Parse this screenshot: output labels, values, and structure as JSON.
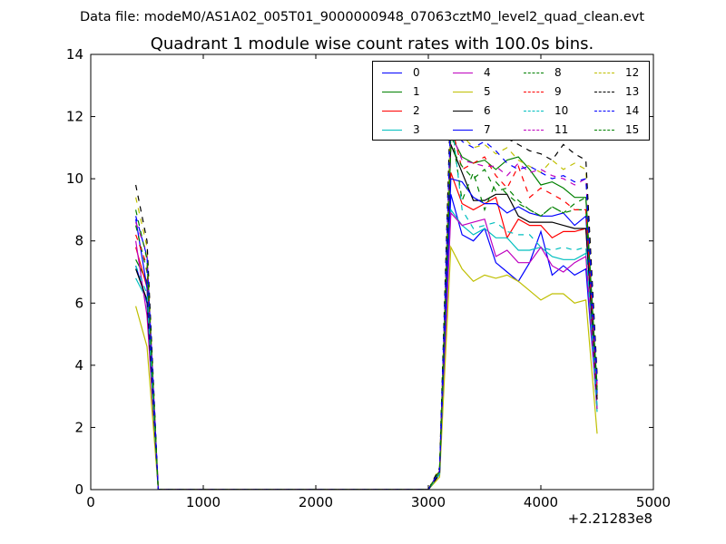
{
  "header": {
    "data_file": "Data file: modeM0/AS1A02_005T01_9000000948_07063cztM0_level2_quad_clean.evt"
  },
  "chart_data": {
    "type": "line",
    "title": "Quadrant 1 module wise count rates with 100.0s bins.",
    "xlabel": "",
    "ylabel": "",
    "x_offset_label": "+2.21283e8",
    "xlim": [
      0,
      5000
    ],
    "ylim": [
      0,
      14
    ],
    "x_ticks": [
      0,
      1000,
      2000,
      3000,
      4000,
      5000
    ],
    "y_ticks": [
      0,
      2,
      4,
      6,
      8,
      10,
      12,
      14
    ],
    "x_tick_labels": [
      "0",
      "1000",
      "2000",
      "3000",
      "4000",
      "5000"
    ],
    "y_tick_labels": [
      "0",
      "2",
      "4",
      "6",
      "8",
      "10",
      "12",
      "14"
    ],
    "grid": false,
    "legend_placement": "top-right",
    "x": [
      400,
      500,
      600,
      700,
      800,
      900,
      1000,
      1100,
      1200,
      1300,
      1400,
      1500,
      1600,
      1700,
      1800,
      1900,
      2000,
      2100,
      2200,
      2300,
      2400,
      2500,
      2600,
      2700,
      2800,
      2900,
      3000,
      3100,
      3200,
      3300,
      3400,
      3500,
      3600,
      3700,
      3800,
      3900,
      4000,
      4100,
      4200,
      4300,
      4400,
      4500
    ],
    "series": [
      {
        "name": "0",
        "color": "#0000ff",
        "dash": "solid",
        "values": [
          7.2,
          6.0,
          0,
          0,
          0,
          0,
          0,
          0,
          0,
          0,
          0,
          0,
          0,
          0,
          0,
          0,
          0,
          0,
          0,
          0,
          0,
          0,
          0,
          0,
          0,
          0,
          0,
          0.5,
          9.5,
          8.2,
          8.0,
          8.4,
          7.3,
          7.0,
          6.7,
          7.3,
          8.3,
          6.9,
          7.2,
          6.9,
          7.1,
          2.6
        ]
      },
      {
        "name": "1",
        "color": "#008000",
        "dash": "solid",
        "values": [
          7.4,
          6.7,
          0,
          0,
          0,
          0,
          0,
          0,
          0,
          0,
          0,
          0,
          0,
          0,
          0,
          0,
          0,
          0,
          0,
          0,
          0,
          0,
          0,
          0,
          0,
          0,
          0,
          0.6,
          11.4,
          10.7,
          10.5,
          10.6,
          10.3,
          10.6,
          10.7,
          10.3,
          9.8,
          9.9,
          9.7,
          9.4,
          9.4,
          3.2
        ]
      },
      {
        "name": "2",
        "color": "#ff0000",
        "dash": "solid",
        "values": [
          7.8,
          6.5,
          0,
          0,
          0,
          0,
          0,
          0,
          0,
          0,
          0,
          0,
          0,
          0,
          0,
          0,
          0,
          0,
          0,
          0,
          0,
          0,
          0,
          0,
          0,
          0,
          0,
          0.6,
          10.2,
          9.2,
          9.0,
          9.2,
          9.4,
          8.1,
          8.7,
          8.5,
          8.5,
          8.1,
          8.3,
          8.3,
          8.4,
          3.0
        ]
      },
      {
        "name": "3",
        "color": "#00bfbf",
        "dash": "solid",
        "values": [
          6.8,
          6.1,
          0,
          0,
          0,
          0,
          0,
          0,
          0,
          0,
          0,
          0,
          0,
          0,
          0,
          0,
          0,
          0,
          0,
          0,
          0,
          0,
          0,
          0,
          0,
          0,
          0,
          0.5,
          9.0,
          8.5,
          8.2,
          8.4,
          8.1,
          8.1,
          7.7,
          7.7,
          7.8,
          7.5,
          7.4,
          7.4,
          7.6,
          2.5
        ]
      },
      {
        "name": "4",
        "color": "#bf00bf",
        "dash": "solid",
        "values": [
          8.0,
          5.6,
          0,
          0,
          0,
          0,
          0,
          0,
          0,
          0,
          0,
          0,
          0,
          0,
          0,
          0,
          0,
          0,
          0,
          0,
          0,
          0,
          0,
          0,
          0,
          0,
          0,
          0.5,
          8.9,
          8.5,
          8.6,
          8.7,
          7.5,
          7.7,
          7.3,
          7.3,
          7.8,
          7.2,
          7.0,
          7.3,
          7.5,
          2.6
        ]
      },
      {
        "name": "5",
        "color": "#bfbf00",
        "dash": "solid",
        "values": [
          5.9,
          4.6,
          0,
          0,
          0,
          0,
          0,
          0,
          0,
          0,
          0,
          0,
          0,
          0,
          0,
          0,
          0,
          0,
          0,
          0,
          0,
          0,
          0,
          0,
          0,
          0,
          0,
          0.4,
          7.8,
          7.1,
          6.7,
          6.9,
          6.8,
          6.9,
          6.7,
          6.4,
          6.1,
          6.3,
          6.3,
          6.0,
          6.1,
          1.8
        ]
      },
      {
        "name": "6",
        "color": "#000000",
        "dash": "solid",
        "values": [
          7.1,
          6.1,
          0,
          0,
          0,
          0,
          0,
          0,
          0,
          0,
          0,
          0,
          0,
          0,
          0,
          0,
          0,
          0,
          0,
          0,
          0,
          0,
          0,
          0,
          0,
          0,
          0,
          0.5,
          11.1,
          10.2,
          9.3,
          9.3,
          9.5,
          9.5,
          8.8,
          8.6,
          8.6,
          8.6,
          8.5,
          8.4,
          8.4,
          2.9
        ]
      },
      {
        "name": "7",
        "color": "#0000ff",
        "dash": "solid",
        "values": [
          8.7,
          6.5,
          0,
          0,
          0,
          0,
          0,
          0,
          0,
          0,
          0,
          0,
          0,
          0,
          0,
          0,
          0,
          0,
          0,
          0,
          0,
          0,
          0,
          0,
          0,
          0,
          0,
          0.6,
          10.0,
          9.9,
          9.4,
          9.2,
          9.2,
          8.9,
          9.1,
          8.9,
          8.8,
          8.8,
          8.9,
          8.5,
          8.8,
          3.1
        ]
      },
      {
        "name": "8",
        "color": "#008000",
        "dash": "dashed",
        "values": [
          8.5,
          7.0,
          0,
          0,
          0,
          0,
          0,
          0,
          0,
          0,
          0,
          0,
          0,
          0,
          0,
          0,
          0,
          0,
          0,
          0,
          0,
          0,
          0,
          0,
          0,
          0,
          0,
          0.6,
          11.7,
          9.3,
          10.2,
          9.0,
          9.9,
          9.5,
          9.2,
          9.0,
          8.8,
          9.1,
          8.9,
          9.0,
          9.0,
          3.2
        ]
      },
      {
        "name": "9",
        "color": "#ff0000",
        "dash": "dashed",
        "values": [
          8.2,
          7.2,
          0,
          0,
          0,
          0,
          0,
          0,
          0,
          0,
          0,
          0,
          0,
          0,
          0,
          0,
          0,
          0,
          0,
          0,
          0,
          0,
          0,
          0,
          0,
          0,
          0,
          0.6,
          11.8,
          10.3,
          10.5,
          10.7,
          10.1,
          9.7,
          10.4,
          9.4,
          9.7,
          9.5,
          9.3,
          9.0,
          9.0,
          3.2
        ]
      },
      {
        "name": "10",
        "color": "#00bfbf",
        "dash": "dashed",
        "values": [
          7.2,
          6.3,
          0,
          0,
          0,
          0,
          0,
          0,
          0,
          0,
          0,
          0,
          0,
          0,
          0,
          0,
          0,
          0,
          0,
          0,
          0,
          0,
          0,
          0,
          0,
          0,
          0,
          0.5,
          12.1,
          9.0,
          8.4,
          8.5,
          8.6,
          8.3,
          8.2,
          8.2,
          7.8,
          7.7,
          7.8,
          7.7,
          7.8,
          2.7
        ]
      },
      {
        "name": "11",
        "color": "#bf00bf",
        "dash": "dashed",
        "values": [
          8.6,
          7.6,
          0,
          0,
          0,
          0,
          0,
          0,
          0,
          0,
          0,
          0,
          0,
          0,
          0,
          0,
          0,
          0,
          0,
          0,
          0,
          0,
          0,
          0,
          0,
          0,
          0,
          0.6,
          11.5,
          10.6,
          10.5,
          10.4,
          10.4,
          10.1,
          10.5,
          10.2,
          10.3,
          10.1,
          10.0,
          9.8,
          10.0,
          3.4
        ]
      },
      {
        "name": "12",
        "color": "#bfbf00",
        "dash": "dashed",
        "values": [
          9.4,
          7.8,
          0,
          0,
          0,
          0,
          0,
          0,
          0,
          0,
          0,
          0,
          0,
          0,
          0,
          0,
          0,
          0,
          0,
          0,
          0,
          0,
          0,
          0,
          0,
          0,
          0,
          0.7,
          12.0,
          11.4,
          11.0,
          11.1,
          10.8,
          11.0,
          10.6,
          10.4,
          10.2,
          10.6,
          10.3,
          10.5,
          10.3,
          3.6
        ]
      },
      {
        "name": "13",
        "color": "#000000",
        "dash": "dashed",
        "values": [
          9.8,
          8.0,
          0,
          0,
          0,
          0,
          0,
          0,
          0,
          0,
          0,
          0,
          0,
          0,
          0,
          0,
          0,
          0,
          0,
          0,
          0,
          0,
          0,
          0,
          0,
          0,
          0,
          0.7,
          12.8,
          11.6,
          11.4,
          11.6,
          11.5,
          11.3,
          11.1,
          10.9,
          10.8,
          10.6,
          11.1,
          10.8,
          10.6,
          3.7
        ]
      },
      {
        "name": "14",
        "color": "#0000ff",
        "dash": "dashed",
        "values": [
          8.8,
          7.5,
          0,
          0,
          0,
          0,
          0,
          0,
          0,
          0,
          0,
          0,
          0,
          0,
          0,
          0,
          0,
          0,
          0,
          0,
          0,
          0,
          0,
          0,
          0,
          0,
          0,
          0.6,
          12.2,
          11.2,
          11.0,
          11.2,
          10.9,
          10.5,
          10.3,
          10.4,
          10.2,
          10.0,
          10.1,
          9.9,
          10.0,
          3.5
        ]
      },
      {
        "name": "15",
        "color": "#008000",
        "dash": "dashed",
        "values": [
          9.0,
          7.4,
          0,
          0,
          0,
          0,
          0,
          0,
          0,
          0,
          0,
          0,
          0,
          0,
          0,
          0,
          0,
          0,
          0,
          0,
          0,
          0,
          0,
          0,
          0,
          0,
          0,
          0.6,
          11.0,
          10.4,
          10.0,
          10.3,
          9.6,
          9.7,
          9.3,
          9.0,
          8.8,
          9.1,
          8.9,
          9.2,
          9.4,
          3.3
        ]
      }
    ]
  }
}
